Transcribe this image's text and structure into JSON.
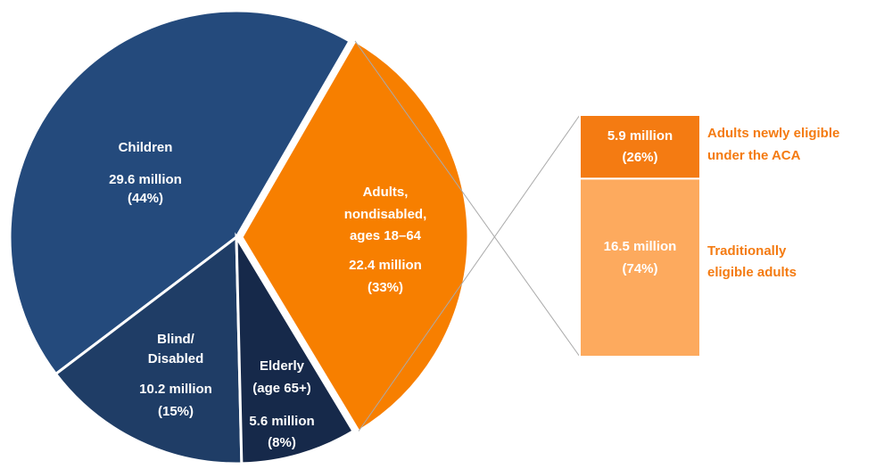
{
  "chart_data": {
    "type": "pie",
    "categories": [
      [
        "Children"
      ],
      [
        "Blind/",
        "Disabled"
      ],
      [
        "Elderly",
        "(age 65+)"
      ],
      [
        "Adults,",
        "nondisabled,",
        "ages 18–64"
      ]
    ],
    "values": [
      29.6,
      10.2,
      5.6,
      22.4
    ],
    "value_labels": [
      "29.6 million",
      "10.2 million",
      "5.6 million",
      "22.4 million"
    ],
    "percents": [
      44,
      15,
      8,
      33
    ],
    "percent_labels": [
      "(44%)",
      "(15%)",
      "(8%)",
      "(33%)"
    ],
    "colors": [
      "#244a7c",
      "#1f3d66",
      "#16294a",
      "#f77f00"
    ],
    "breakdown": {
      "type": "bar",
      "categories": [
        [
          "Adults newly eligible",
          "under the ACA"
        ],
        [
          "Traditionally",
          "eligible adults"
        ]
      ],
      "values": [
        5.9,
        16.5
      ],
      "value_labels": [
        "5.9 million",
        "16.5 million"
      ],
      "percents": [
        26,
        74
      ],
      "percent_labels": [
        "(26%)",
        "(74%)"
      ],
      "colors": [
        "#f47b12",
        "#fdaa5e"
      ]
    }
  }
}
